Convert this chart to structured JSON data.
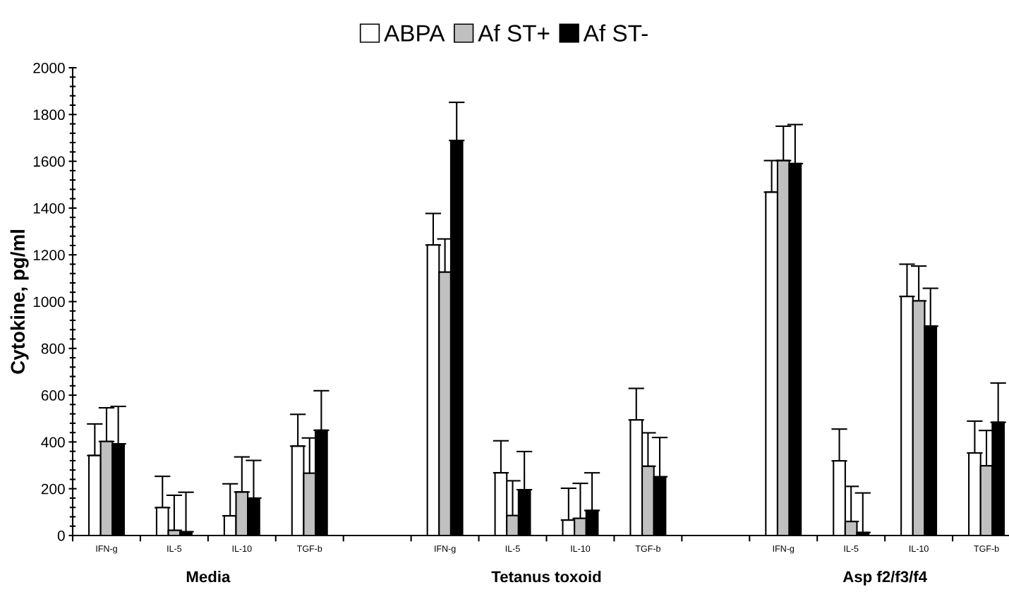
{
  "chart_data": {
    "type": "bar",
    "ylabel": "Cytokine, pg/ml",
    "categories": [
      "IFN-g",
      "IL-5",
      "IL-10",
      "TGF-b",
      null,
      "IFN-g",
      "IL-5",
      "IL-10",
      "TGF-b",
      null,
      "IFN-g",
      "IL-5",
      "IL-10",
      "TGF-b"
    ],
    "series": [
      {
        "name": "ABPA",
        "color": "#ffffff",
        "values": [
          342,
          119,
          84,
          382,
          null,
          1242,
          268,
          66,
          494,
          null,
          1468,
          319,
          1022,
          353
        ],
        "errors": [
          [
            342,
            477
          ],
          [
            119,
            253
          ],
          [
            84,
            221
          ],
          [
            382,
            518
          ],
          null,
          [
            1242,
            1377
          ],
          [
            268,
            405
          ],
          [
            66,
            202
          ],
          [
            494,
            629
          ],
          null,
          [
            1468,
            1603
          ],
          [
            319,
            455
          ],
          [
            1022,
            1160
          ],
          [
            353,
            489
          ]
        ]
      },
      {
        "name": "Af ST+",
        "color": "#c0c0c0",
        "values": [
          402,
          22,
          186,
          266,
          null,
          1126,
          85,
          73,
          296,
          null,
          1603,
          60,
          1003,
          298
        ],
        "errors": [
          [
            402,
            546
          ],
          [
            22,
            172
          ],
          [
            186,
            336
          ],
          [
            266,
            417
          ],
          null,
          [
            1126,
            1268
          ],
          [
            85,
            234
          ],
          [
            73,
            223
          ],
          [
            296,
            439
          ],
          null,
          [
            1603,
            1750
          ],
          [
            60,
            210
          ],
          [
            1003,
            1152
          ],
          [
            298,
            449
          ]
        ]
      },
      {
        "name": "Af ST-",
        "color": "#000000",
        "values": [
          392,
          16,
          160,
          450,
          null,
          1689,
          196,
          107,
          251,
          null,
          1590,
          13,
          895,
          484
        ],
        "errors": [
          [
            392,
            552
          ],
          [
            16,
            185
          ],
          [
            160,
            321
          ],
          [
            450,
            619
          ],
          null,
          [
            1689,
            1852
          ],
          [
            196,
            359
          ],
          [
            107,
            268
          ],
          [
            251,
            419
          ],
          null,
          [
            1590,
            1757
          ],
          [
            13,
            182
          ],
          [
            895,
            1057
          ],
          [
            484,
            652
          ]
        ]
      }
    ],
    "ylim": [
      0,
      2000
    ],
    "yticks": [
      0,
      200,
      400,
      600,
      800,
      1000,
      1200,
      1400,
      1600,
      1800,
      2000
    ],
    "legend": "top",
    "annotations": [
      "Media",
      "Tetanus toxoid",
      "Asp f2/f3/f4"
    ]
  }
}
